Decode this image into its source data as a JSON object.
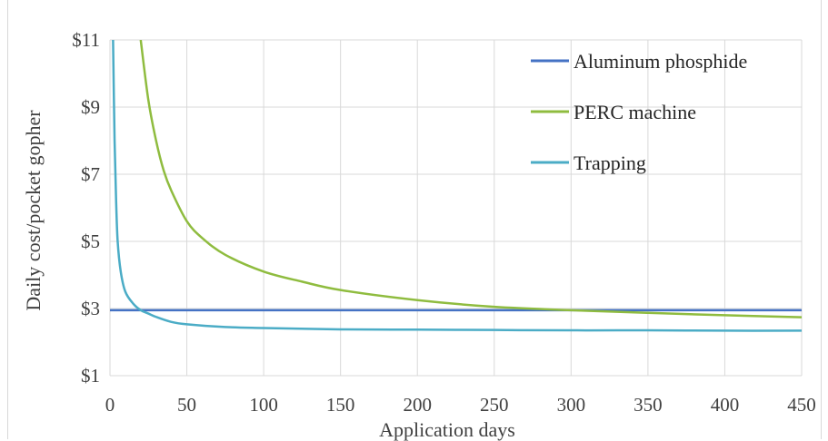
{
  "chart_data": {
    "type": "line",
    "xlabel": "Application days",
    "ylabel": "Daily cost/pocket gopher",
    "xlim": [
      0,
      450
    ],
    "ylim": [
      1,
      11
    ],
    "x_ticks": [
      0,
      50,
      100,
      150,
      200,
      250,
      300,
      350,
      400,
      450
    ],
    "x_tick_labels": [
      "0",
      "50",
      "100",
      "150",
      "200",
      "250",
      "300",
      "350",
      "400",
      "450"
    ],
    "y_ticks": [
      1,
      3,
      5,
      7,
      9,
      11
    ],
    "y_tick_labels": [
      "$1",
      "$3",
      "$5",
      "$7",
      "$9",
      "$11"
    ],
    "grid": true,
    "legend_position": "top-right",
    "series": [
      {
        "name": "Aluminum phosphide",
        "color": "#4472c4",
        "x": [
          0,
          450
        ],
        "y": [
          2.95,
          2.95
        ]
      },
      {
        "name": "PERC machine",
        "color": "#8fbc3f",
        "x": [
          20,
          25,
          30,
          35,
          40,
          50,
          60,
          75,
          100,
          125,
          150,
          200,
          250,
          300,
          350,
          400,
          450
        ],
        "y": [
          11,
          9.2,
          8.0,
          7.1,
          6.5,
          5.6,
          5.1,
          4.6,
          4.1,
          3.8,
          3.55,
          3.25,
          3.05,
          2.95,
          2.87,
          2.8,
          2.74
        ]
      },
      {
        "name": "Trapping",
        "color": "#4bacc6",
        "x": [
          2,
          3,
          4,
          5,
          7,
          10,
          15,
          20,
          25,
          30,
          40,
          50,
          75,
          100,
          150,
          200,
          250,
          300,
          350,
          400,
          450
        ],
        "y": [
          11,
          8.0,
          6.2,
          5.0,
          4.1,
          3.5,
          3.15,
          2.95,
          2.85,
          2.75,
          2.6,
          2.53,
          2.45,
          2.42,
          2.38,
          2.37,
          2.36,
          2.35,
          2.35,
          2.34,
          2.34
        ]
      }
    ]
  }
}
